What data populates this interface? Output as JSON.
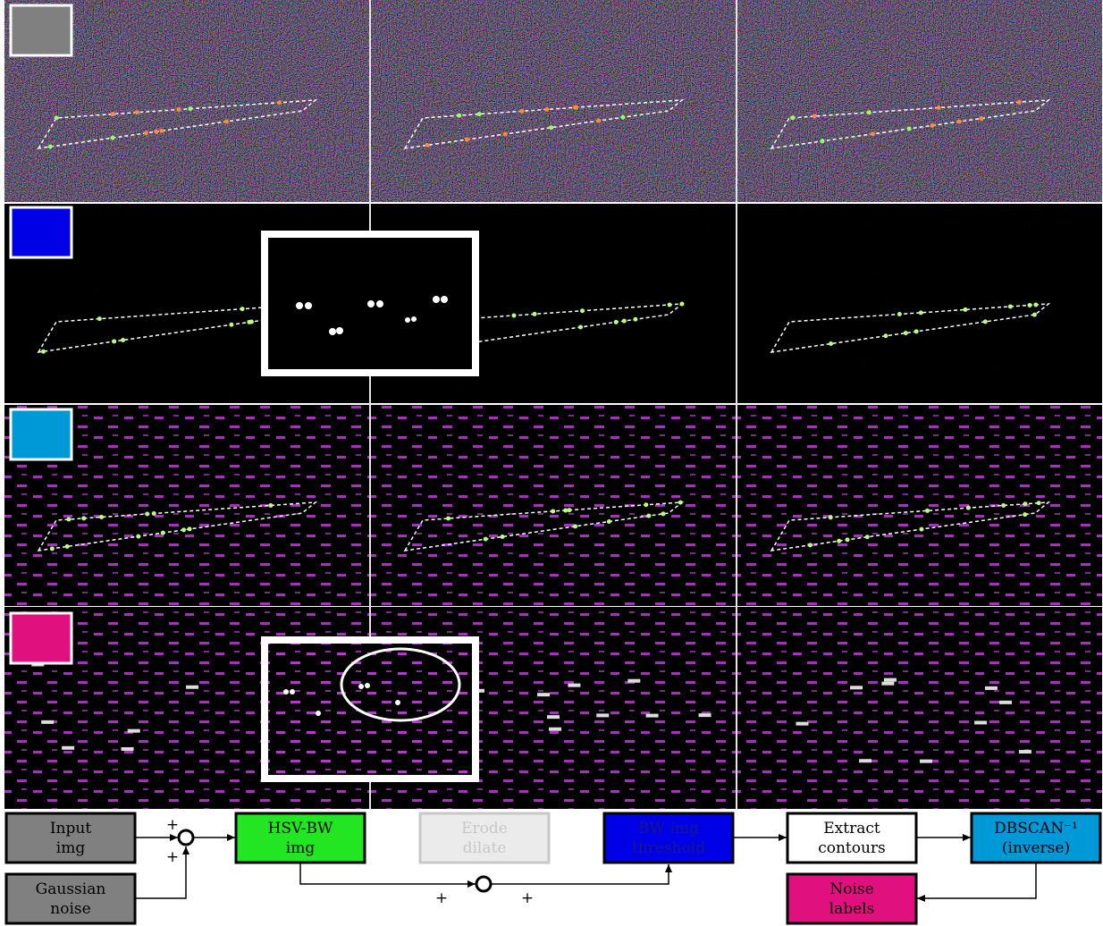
{
  "nodes": [
    {
      "lines": [
        "Input",
        "img"
      ]
    },
    {
      "lines": [
        "Gaussian",
        "noise"
      ]
    },
    {
      "lines": [
        "HSV-BW",
        "img"
      ]
    },
    {
      "lines": [
        "Erode",
        "dilate"
      ]
    },
    {
      "lines": [
        "BW img",
        "threshold"
      ]
    },
    {
      "lines": [
        "Extract",
        "contours"
      ]
    },
    {
      "lines": [
        "DBSCAN⁻¹",
        "(inverse)"
      ]
    },
    {
      "lines": [
        "Noise",
        "labels"
      ]
    }
  ],
  "signs": [
    "+",
    "+",
    "+",
    "+"
  ]
}
